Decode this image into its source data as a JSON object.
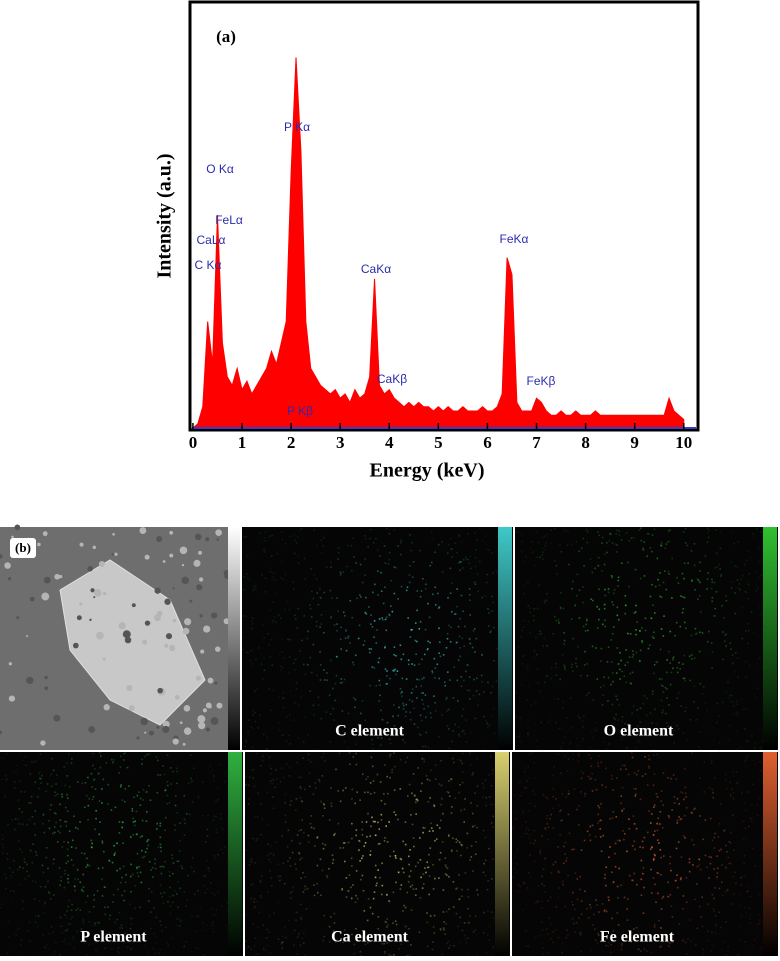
{
  "chart_data": {
    "type": "area",
    "panel_label": "(a)",
    "xlabel": "Energy (keV)",
    "ylabel": "Intensity (a.u.)",
    "color": "#ff0000",
    "x": [
      0,
      0.1,
      0.2,
      0.3,
      0.4,
      0.5,
      0.6,
      0.7,
      0.8,
      0.9,
      1,
      1.1,
      1.2,
      1.3,
      1.4,
      1.5,
      1.6,
      1.7,
      1.8,
      1.9,
      2,
      2.1,
      2.2,
      2.3,
      2.4,
      2.5,
      2.6,
      2.7,
      2.8,
      2.9,
      3,
      3.1,
      3.2,
      3.3,
      3.4,
      3.5,
      3.6,
      3.7,
      3.8,
      3.9,
      4,
      4.1,
      4.2,
      4.3,
      4.4,
      4.5,
      4.6,
      4.7,
      4.8,
      4.9,
      5,
      5.1,
      5.2,
      5.3,
      5.4,
      5.5,
      5.6,
      5.7,
      5.8,
      5.9,
      6,
      6.1,
      6.2,
      6.3,
      6.4,
      6.5,
      6.6,
      6.7,
      6.8,
      6.9,
      7,
      7.1,
      7.2,
      7.3,
      7.4,
      7.5,
      7.6,
      7.7,
      7.8,
      7.9,
      8,
      8.1,
      8.2,
      8.3,
      8.4,
      8.5,
      8.6,
      8.7,
      8.8,
      8.9,
      9,
      9.1,
      9.2,
      9.3,
      9.4,
      9.5,
      9.6,
      9.7,
      9.8,
      9.9,
      10
    ],
    "values": [
      0,
      1,
      5,
      25,
      15,
      50,
      20,
      12,
      10,
      14,
      9,
      11,
      8,
      10,
      12,
      14,
      18,
      15,
      20,
      25,
      60,
      87,
      65,
      25,
      14,
      12,
      10,
      9,
      8,
      9,
      7,
      8,
      6,
      9,
      7,
      8,
      12,
      35,
      10,
      8,
      9,
      7,
      6,
      5,
      6,
      5,
      6,
      5,
      5,
      4,
      5,
      4,
      5,
      4,
      4,
      5,
      4,
      4,
      4,
      5,
      4,
      4,
      5,
      8,
      40,
      36,
      6,
      4,
      4,
      4,
      7,
      6,
      4,
      3,
      3,
      4,
      3,
      3,
      4,
      3,
      3,
      3,
      4,
      3,
      3,
      3,
      3,
      3,
      3,
      3,
      3,
      3,
      3,
      3,
      3,
      3,
      3,
      7,
      4,
      3,
      2
    ],
    "xlim": [
      -0.06,
      10.29
    ],
    "xticks": [
      0,
      1,
      2,
      3,
      4,
      5,
      6,
      7,
      8,
      9,
      10
    ],
    "ylim": [
      0,
      100
    ],
    "annotations": [
      "O Kα",
      "FeLα",
      "CaLα",
      "C Kα",
      "P Kα",
      "CaKα",
      "CaKβ",
      "FeKα",
      "FeKβ",
      "P Kβ"
    ]
  },
  "maps": {
    "panel_label": "(b)",
    "labels": [
      "C element",
      "O element",
      "P element",
      "Ca element",
      "Fe element"
    ]
  }
}
